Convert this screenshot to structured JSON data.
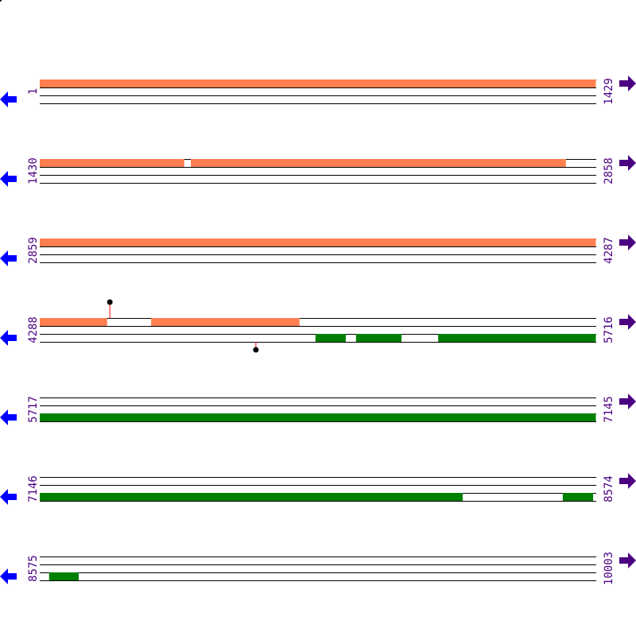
{
  "colors": {
    "forward_feature": "#ff7f50",
    "reverse_feature": "#008000",
    "left_arrow": "#0000ff",
    "right_arrow": "#4b0082",
    "label": "#4b0082",
    "marker_stem": "#ff0000",
    "marker_head": "#000000"
  },
  "bp_per_row": 1429,
  "rows": [
    {
      "start_label": "1",
      "end_label": "1429",
      "start": 1,
      "end": 1429,
      "forward": [
        [
          1,
          1429
        ]
      ],
      "reverse": [],
      "markers": []
    },
    {
      "start_label": "1430",
      "end_label": "2858",
      "start": 1430,
      "end": 2858,
      "forward": [
        [
          1430,
          1801
        ],
        [
          1818,
          2781
        ]
      ],
      "reverse": [],
      "markers": []
    },
    {
      "start_label": "2859",
      "end_label": "4287",
      "start": 2859,
      "end": 4287,
      "forward": [
        [
          2859,
          4287
        ]
      ],
      "reverse": [],
      "markers": []
    },
    {
      "start_label": "4288",
      "end_label": "5716",
      "start": 4288,
      "end": 5716,
      "forward": [
        [
          4288,
          4461
        ],
        [
          4574,
          4955
        ]
      ],
      "reverse": [
        [
          4996,
          5074
        ],
        [
          5100,
          5217
        ],
        [
          5311,
          5716
        ]
      ],
      "markers": [
        {
          "pos": 4468,
          "strand": "forward"
        },
        {
          "pos": 4843,
          "strand": "reverse"
        }
      ]
    },
    {
      "start_label": "5717",
      "end_label": "7145",
      "start": 5717,
      "end": 7145,
      "forward": [],
      "reverse": [
        [
          5717,
          7145
        ]
      ],
      "markers": []
    },
    {
      "start_label": "7146",
      "end_label": "8574",
      "start": 7146,
      "end": 8574,
      "forward": [],
      "reverse": [
        [
          7146,
          8232
        ],
        [
          8489,
          8567
        ]
      ],
      "markers": []
    },
    {
      "start_label": "8575",
      "end_label": "10003",
      "start": 8575,
      "end": 10003,
      "forward": [],
      "reverse": [
        [
          8599,
          8675
        ]
      ],
      "markers": []
    }
  ]
}
